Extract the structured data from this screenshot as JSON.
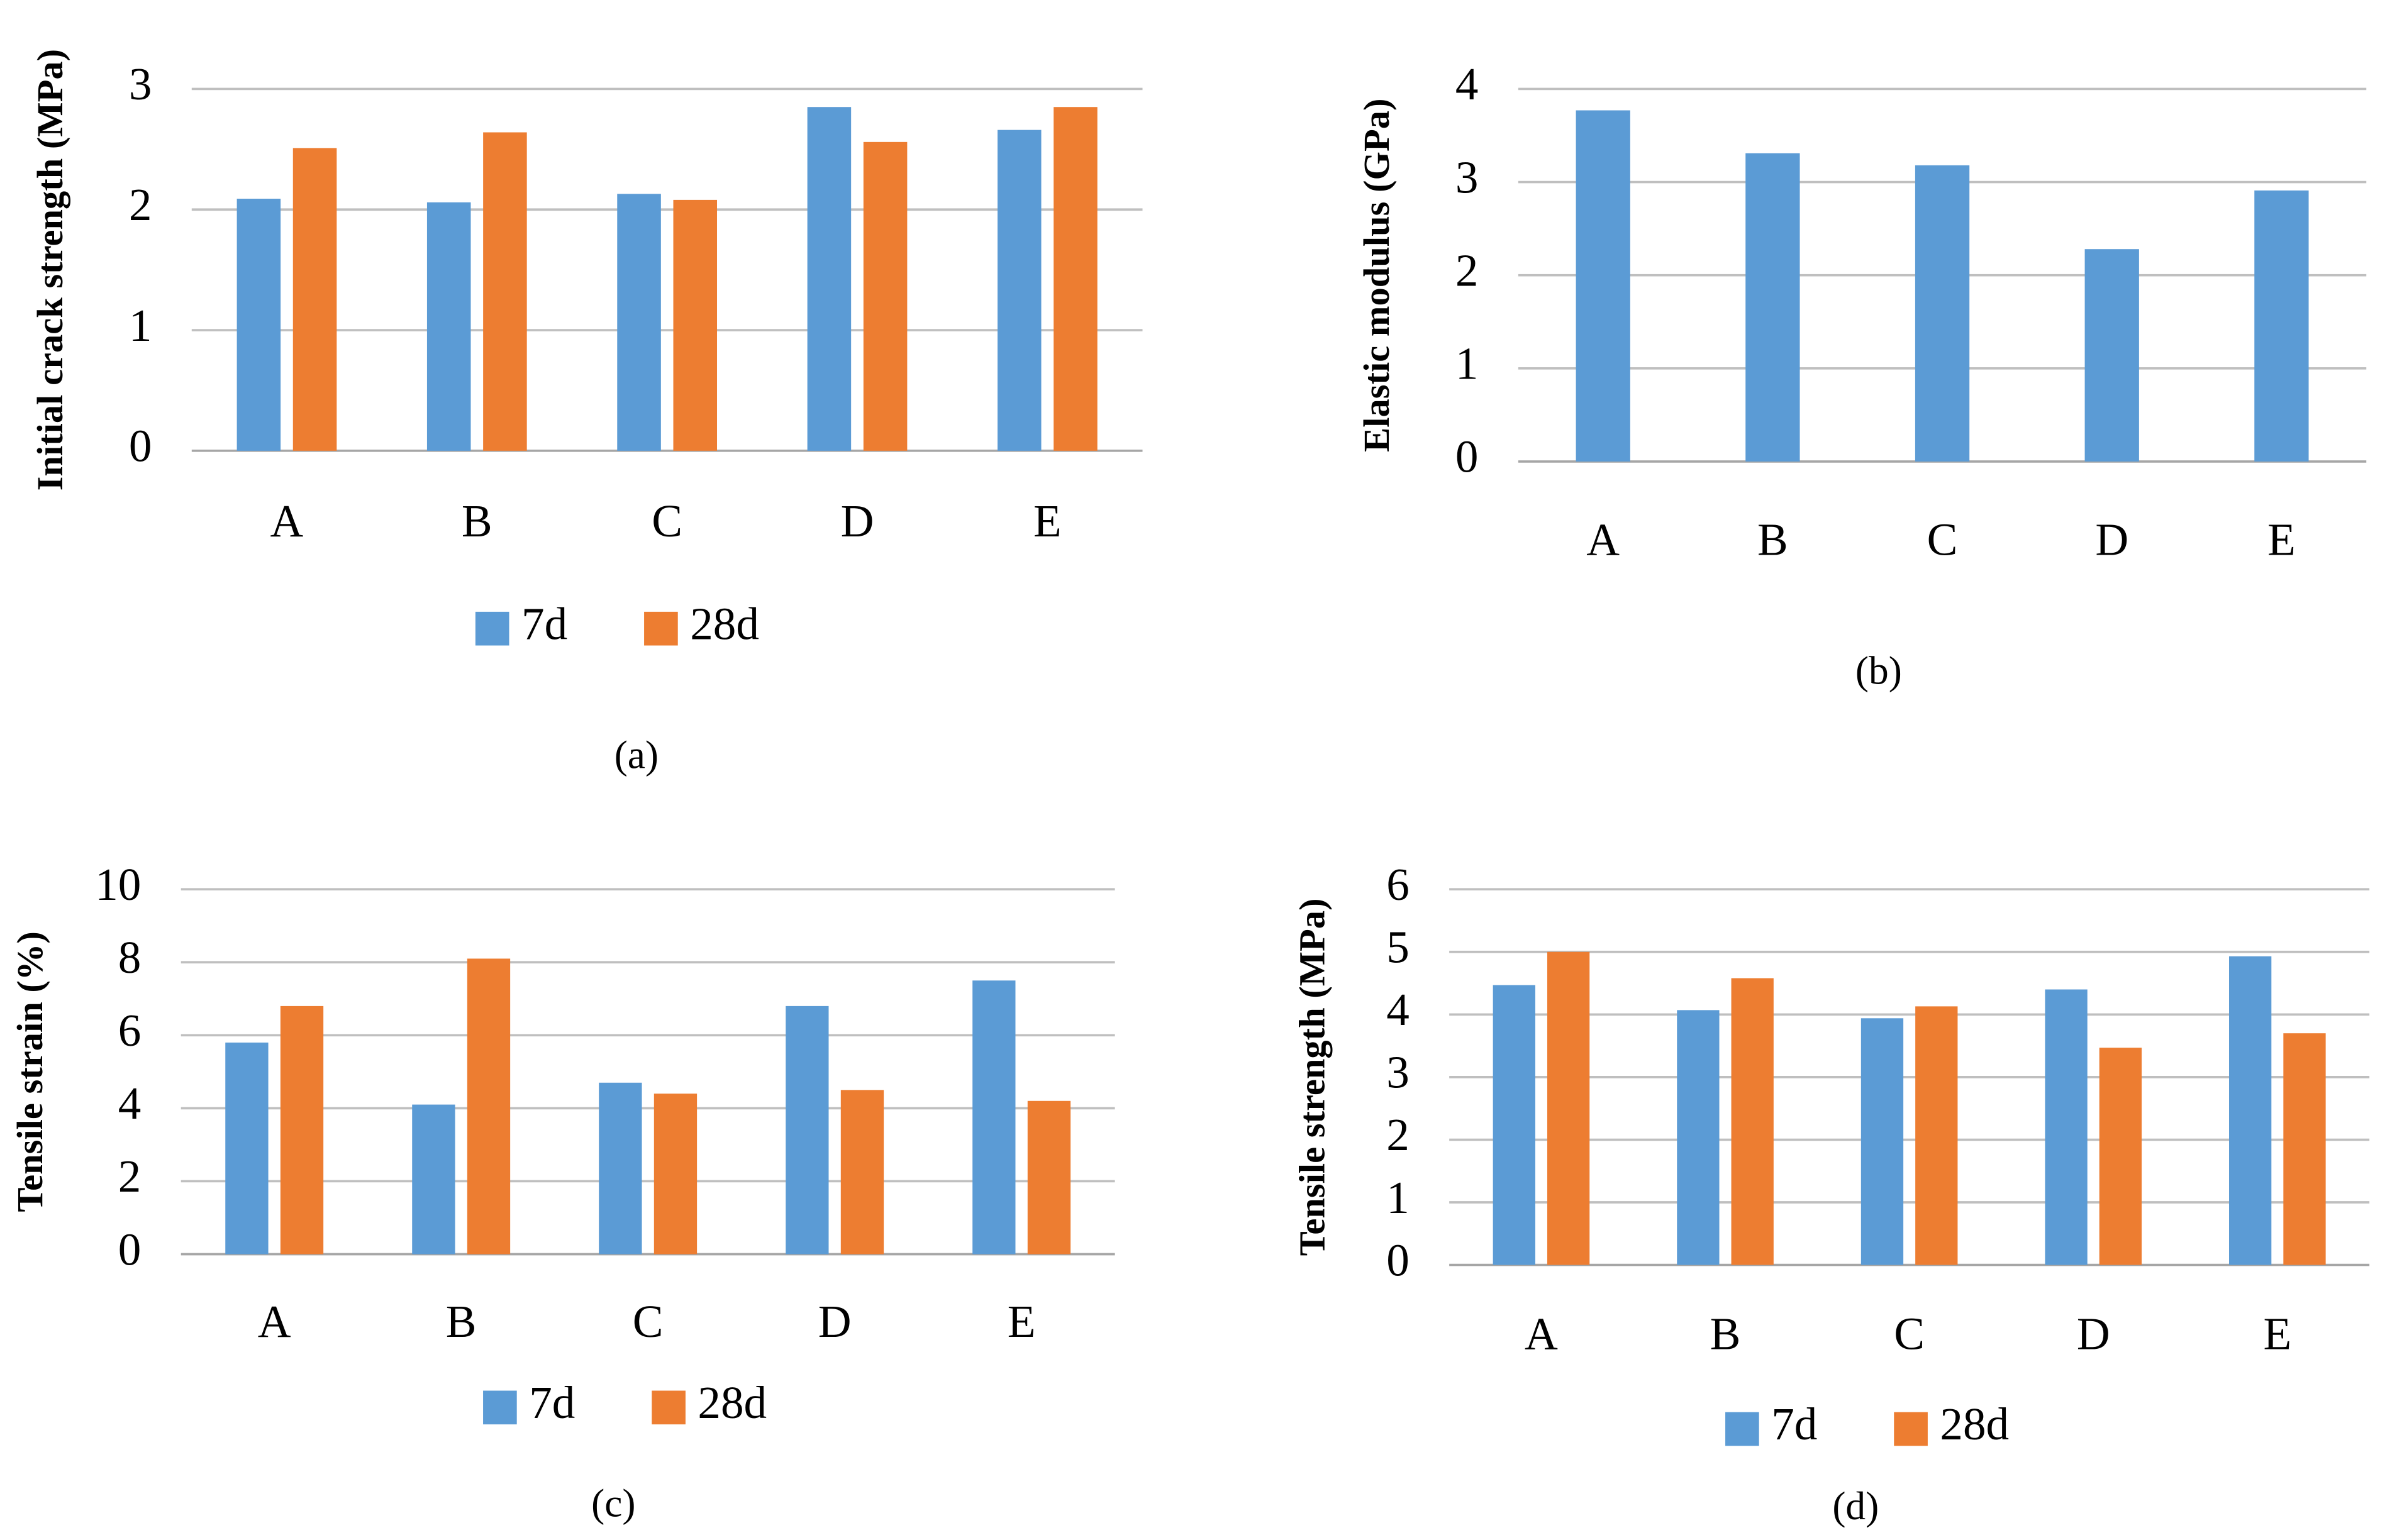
{
  "chart_data": [
    {
      "type": "bar",
      "caption": "(a)",
      "y_label": "Initial crack strength (MPa)",
      "categories": [
        "A",
        "B",
        "C",
        "D",
        "E"
      ],
      "series": [
        {
          "name": "7d",
          "color": "#5b9bd5",
          "values": [
            2.09,
            2.06,
            2.13,
            2.85,
            2.66
          ]
        },
        {
          "name": "28d",
          "color": "#ed7d31",
          "values": [
            2.51,
            2.64,
            2.08,
            2.56,
            2.85
          ]
        }
      ],
      "ylim": [
        0,
        3
      ],
      "yticks": [
        0,
        1,
        2,
        3
      ],
      "grid": true
    },
    {
      "type": "bar",
      "caption": "(b)",
      "y_label": "Elastic modulus (GPa)",
      "categories": [
        "A",
        "B",
        "C",
        "D",
        "E"
      ],
      "values": [
        3.77,
        3.31,
        3.18,
        2.28,
        2.91
      ],
      "color": "#5b9bd5",
      "ylim": [
        0,
        4
      ],
      "yticks": [
        0,
        1,
        2,
        3,
        4
      ],
      "grid": true
    },
    {
      "type": "bar",
      "caption": "(c)",
      "y_label": "Tensile strain (%)",
      "categories": [
        "A",
        "B",
        "C",
        "D",
        "E"
      ],
      "series": [
        {
          "name": "7d",
          "color": "#5b9bd5",
          "values": [
            5.8,
            4.1,
            4.7,
            6.8,
            7.5
          ]
        },
        {
          "name": "28d",
          "color": "#ed7d31",
          "values": [
            6.8,
            8.1,
            4.4,
            4.5,
            4.2
          ]
        }
      ],
      "ylim": [
        0,
        10
      ],
      "yticks": [
        0,
        2,
        4,
        6,
        8,
        10
      ],
      "grid": true
    },
    {
      "type": "bar",
      "caption": "(d)",
      "y_label": "Tensile strength (MPa)",
      "categories": [
        "A",
        "B",
        "C",
        "D",
        "E"
      ],
      "series": [
        {
          "name": "7d",
          "color": "#5b9bd5",
          "values": [
            4.47,
            4.07,
            3.94,
            4.4,
            4.93
          ]
        },
        {
          "name": "28d",
          "color": "#ed7d31",
          "values": [
            5.0,
            4.58,
            4.13,
            3.47,
            3.7
          ]
        }
      ],
      "ylim": [
        0,
        6
      ],
      "yticks": [
        0,
        1,
        2,
        3,
        4,
        5,
        6
      ],
      "grid": true
    }
  ]
}
